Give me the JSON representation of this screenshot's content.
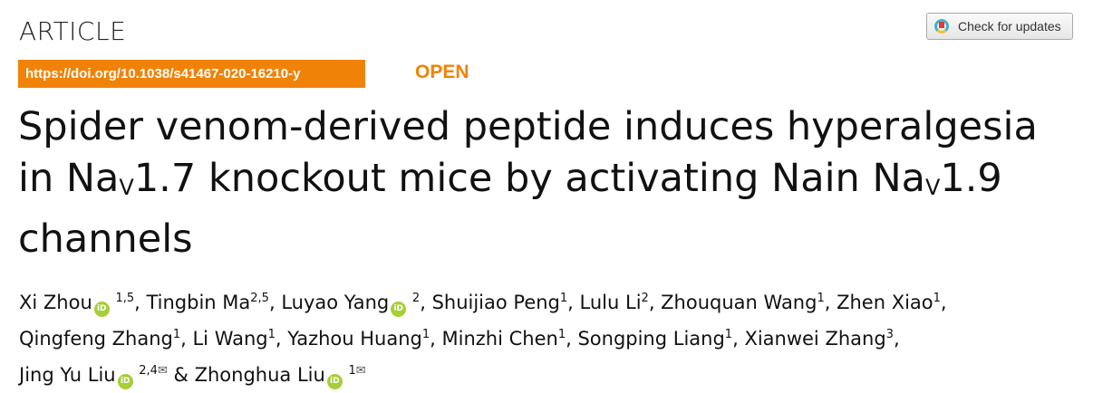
{
  "header": {
    "section": "ARTICLE",
    "check_updates": "Check for updates",
    "doi": "https://doi.org/10.1038/s41467-020-16210-y",
    "access": "OPEN"
  },
  "title": {
    "line1": "Spider venom-derived peptide induces hyperalgesia",
    "l2a": "in Na",
    "sub": "V",
    "l2b": "1.7 knockout mice by activating Na",
    "l2c": "1.9",
    "line3": "channels"
  },
  "authors": [
    {
      "name": "Xi Zhou",
      "orcid": true,
      "aff": "1,5"
    },
    {
      "name": "Tingbin Ma",
      "orcid": false,
      "aff": "2,5"
    },
    {
      "name": "Luyao Yang",
      "orcid": true,
      "aff": "2"
    },
    {
      "name": "Shuijiao Peng",
      "orcid": false,
      "aff": "1"
    },
    {
      "name": "Lulu Li",
      "orcid": false,
      "aff": "2"
    },
    {
      "name": "Zhouquan Wang",
      "orcid": false,
      "aff": "1"
    },
    {
      "name": "Zhen Xiao",
      "orcid": false,
      "aff": "1",
      "br": true
    },
    {
      "name": "Qingfeng Zhang",
      "orcid": false,
      "aff": "1"
    },
    {
      "name": "Li Wang",
      "orcid": false,
      "aff": "1"
    },
    {
      "name": "Yazhou Huang",
      "orcid": false,
      "aff": "1"
    },
    {
      "name": "Minzhi Chen",
      "orcid": false,
      "aff": "1"
    },
    {
      "name": "Songping Liang",
      "orcid": false,
      "aff": "1"
    },
    {
      "name": "Xianwei Zhang",
      "orcid": false,
      "aff": "3",
      "br": true
    },
    {
      "name": "Jing Yu Liu",
      "orcid": true,
      "aff": "2,4",
      "corresponding": true
    },
    {
      "name": "Zhonghua Liu",
      "orcid": true,
      "aff": "1",
      "corresponding": true
    }
  ],
  "orcid_label": "iD",
  "mail_glyph": "✉",
  "colors": {
    "accent": "#f08307",
    "orcid": "#a6ce39"
  }
}
